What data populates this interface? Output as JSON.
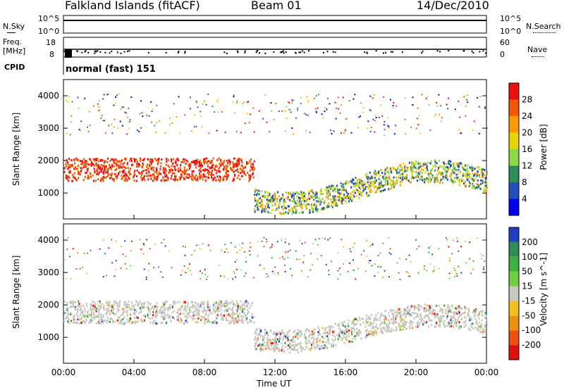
{
  "header": {
    "station": "Falkland Islands (fitACF)",
    "beam": "Beam 01",
    "date": "14/Dec/2010"
  },
  "aux_panels": {
    "noise": {
      "left_label": "N.Sky",
      "right_label": "N.Search",
      "ticks": [
        "10^5",
        "10^0"
      ]
    },
    "freq": {
      "left_label_1": "Freq.",
      "left_label_2": "[MHz]",
      "left_ticks": [
        "18",
        "8"
      ],
      "right_ticks": [
        "60",
        "0"
      ],
      "right_label": "Nave"
    },
    "cpid": {
      "label": "CPID",
      "text": "normal (fast) 151"
    }
  },
  "chart_data": [
    {
      "type": "heatmap",
      "panel": "power",
      "ylabel": "Slant Range [km]",
      "ylim": [
        200,
        4500
      ],
      "yticks": [
        1000,
        2000,
        3000,
        4000
      ],
      "colorbar": {
        "label": "Power [dB]",
        "ticks": [
          "28",
          "24",
          "20",
          "16",
          "12",
          "8",
          "4"
        ],
        "colors": [
          "#ee1010",
          "#f25a00",
          "#ff9900",
          "#e8d400",
          "#8ed848",
          "#2e8b57",
          "#2050b8",
          "#0000ee"
        ]
      }
    },
    {
      "type": "heatmap",
      "panel": "velocity",
      "ylabel": "Slant Range [km]",
      "ylim": [
        200,
        4500
      ],
      "yticks": [
        1000,
        2000,
        3000,
        4000
      ],
      "colorbar": {
        "label": "Velocity [m s^-1]",
        "ticks": [
          "200",
          "100",
          "50",
          "15",
          "-15",
          "-50",
          "-100",
          "-200"
        ],
        "colors": [
          "#2040c0",
          "#2e8b57",
          "#3cb040",
          "#70d040",
          "#c8c8c0",
          "#f0c020",
          "#f09010",
          "#ee5010",
          "#e01010"
        ]
      }
    }
  ],
  "x_axis": {
    "label": "Time UT",
    "ticks": [
      "00:00",
      "04:00",
      "08:00",
      "12:00",
      "16:00",
      "20:00",
      "00:00"
    ]
  }
}
